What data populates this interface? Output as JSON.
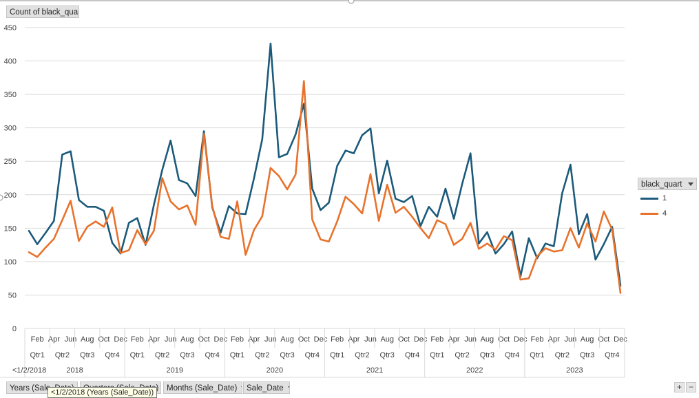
{
  "chart_data": {
    "type": "line",
    "title": "",
    "value_field": "Count of black_quart",
    "legend_title": "black_quart",
    "legend_placement": "right",
    "ylim": [
      0,
      450
    ],
    "y_ticks": [
      0,
      50,
      100,
      150,
      200,
      250,
      300,
      350,
      400,
      450
    ],
    "grid": true,
    "first_label": "<1/2/2018",
    "month_tick_labels": [
      "Feb",
      "Apr",
      "Jun",
      "Aug",
      "Oct",
      "Dec"
    ],
    "quarter_labels": [
      "Qtr1",
      "Qtr2",
      "Qtr3",
      "Qtr4"
    ],
    "years": [
      "2018",
      "2019",
      "2020",
      "2021",
      "2022",
      "2023"
    ],
    "x": [
      "2018-01",
      "2018-02",
      "2018-03",
      "2018-04",
      "2018-05",
      "2018-06",
      "2018-07",
      "2018-08",
      "2018-09",
      "2018-10",
      "2018-11",
      "2018-12",
      "2019-01",
      "2019-02",
      "2019-03",
      "2019-04",
      "2019-05",
      "2019-06",
      "2019-07",
      "2019-08",
      "2019-09",
      "2019-10",
      "2019-11",
      "2019-12",
      "2020-01",
      "2020-02",
      "2020-03",
      "2020-04",
      "2020-05",
      "2020-06",
      "2020-07",
      "2020-08",
      "2020-09",
      "2020-10",
      "2020-11",
      "2020-12",
      "2021-01",
      "2021-02",
      "2021-03",
      "2021-04",
      "2021-05",
      "2021-06",
      "2021-07",
      "2021-08",
      "2021-09",
      "2021-10",
      "2021-11",
      "2021-12",
      "2022-01",
      "2022-02",
      "2022-03",
      "2022-04",
      "2022-05",
      "2022-06",
      "2022-07",
      "2022-08",
      "2022-09",
      "2022-10",
      "2022-11",
      "2022-12",
      "2023-01",
      "2023-02",
      "2023-03",
      "2023-04",
      "2023-05",
      "2023-06",
      "2023-07",
      "2023-08",
      "2023-09",
      "2023-10",
      "2023-11",
      "2023-12"
    ],
    "series": [
      {
        "name": "1",
        "color": "#1b5a7a",
        "values": [
          146,
          126,
          143,
          161,
          260,
          265,
          192,
          182,
          182,
          176,
          128,
          112,
          158,
          165,
          125,
          185,
          237,
          281,
          222,
          217,
          198,
          295,
          181,
          143,
          183,
          172,
          171,
          224,
          283,
          426,
          256,
          261,
          290,
          336,
          209,
          177,
          188,
          243,
          266,
          262,
          289,
          299,
          202,
          251,
          194,
          189,
          198,
          153,
          182,
          167,
          209,
          164,
          216,
          262,
          127,
          144,
          112,
          126,
          145,
          78,
          135,
          105,
          127,
          123,
          202,
          245,
          141,
          171,
          103,
          126,
          152,
          64
        ]
      },
      {
        "name": "4",
        "color": "#e8722b",
        "values": [
          114,
          107,
          121,
          134,
          162,
          191,
          131,
          152,
          160,
          152,
          181,
          113,
          117,
          147,
          126,
          146,
          225,
          190,
          178,
          184,
          155,
          291,
          183,
          137,
          134,
          190,
          110,
          147,
          168,
          240,
          228,
          208,
          230,
          370,
          163,
          133,
          130,
          160,
          197,
          186,
          172,
          231,
          161,
          215,
          173,
          182,
          167,
          150,
          135,
          162,
          156,
          125,
          134,
          158,
          119,
          127,
          118,
          138,
          132,
          73,
          75,
          108,
          120,
          115,
          117,
          150,
          121,
          157,
          130,
          175,
          148,
          53
        ]
      }
    ]
  },
  "controls": {
    "field_buttons": [
      "Years (Sale_Date)",
      "Quarters (Sale_Date)",
      "Months (Sale_Date)",
      "Sale_Date"
    ],
    "tooltip": "<1/2/2018 (Years (Sale_Date))",
    "zoom_in": "+",
    "zoom_out": "−"
  }
}
